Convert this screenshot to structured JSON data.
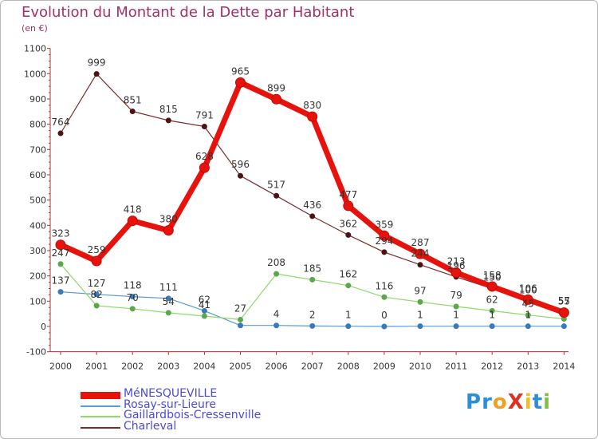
{
  "title": "Evolution du Montant de la Dette par Habitant",
  "subtitle": "(en €)",
  "logo": {
    "text": "ProXiti",
    "letters": [
      "P",
      "r",
      "o",
      "X",
      "i",
      "t",
      "i"
    ],
    "colors": [
      "#2a8fd6",
      "#2a8fd6",
      "#f0a020",
      "#e03020",
      "#f0c020",
      "#2a8fd6",
      "#80c040"
    ]
  },
  "chart_data": {
    "type": "line",
    "title": "Evolution du Montant de la Dette par Habitant",
    "ylabel": "(en €)",
    "xlabel": "",
    "categories": [
      "2000",
      "2001",
      "2002",
      "2003",
      "2004",
      "2005",
      "2006",
      "2007",
      "2008",
      "2009",
      "2010",
      "2011",
      "2012",
      "2013",
      "2014"
    ],
    "ylim": [
      -100,
      1100
    ],
    "yticks": [
      -100,
      0,
      100,
      200,
      300,
      400,
      500,
      600,
      700,
      800,
      900,
      1000,
      1100
    ],
    "grid": false,
    "legend": "bottom-left",
    "series": [
      {
        "name": "MéNESQUEVILLE",
        "color": "#e8120c",
        "values": [
          323,
          259,
          418,
          380,
          628,
          965,
          899,
          830,
          477,
          359,
          287,
          213,
          158,
          106,
          55
        ],
        "labels": [
          "323",
          "259",
          "418",
          "380",
          "628",
          "965",
          "899",
          "830",
          "477",
          "359",
          "287",
          "213",
          "158",
          "106",
          "55"
        ]
      },
      {
        "name": "Rosay-sur-Lieure",
        "color": "#5a9ad2",
        "values": [
          137,
          127,
          118,
          111,
          62,
          4,
          4,
          2,
          1,
          0,
          1,
          1,
          1,
          1,
          1
        ],
        "labels": [
          "137",
          "127",
          "118",
          "111",
          "62",
          "",
          "4",
          "2",
          "1",
          "0",
          "1",
          "1",
          "1",
          "1",
          ""
        ]
      },
      {
        "name": "Gaillardbois-Cressenville",
        "color": "#8ed86c",
        "values": [
          247,
          82,
          70,
          54,
          41,
          27,
          208,
          185,
          162,
          116,
          97,
          79,
          62,
          45,
          30
        ],
        "labels": [
          "247",
          "82",
          "70",
          "54",
          "41",
          "27",
          "208",
          "185",
          "162",
          "116",
          "97",
          "79",
          "62",
          "45",
          ""
        ]
      },
      {
        "name": "Charleval",
        "color": "#7a2a2a",
        "values": [
          764,
          999,
          851,
          815,
          791,
          596,
          517,
          436,
          362,
          294,
          244,
          196,
          150,
          100,
          57
        ],
        "labels": [
          "764",
          "999",
          "851",
          "815",
          "791",
          "596",
          "517",
          "436",
          "362",
          "294",
          "244",
          "196",
          "150",
          "100",
          "57"
        ]
      }
    ]
  }
}
